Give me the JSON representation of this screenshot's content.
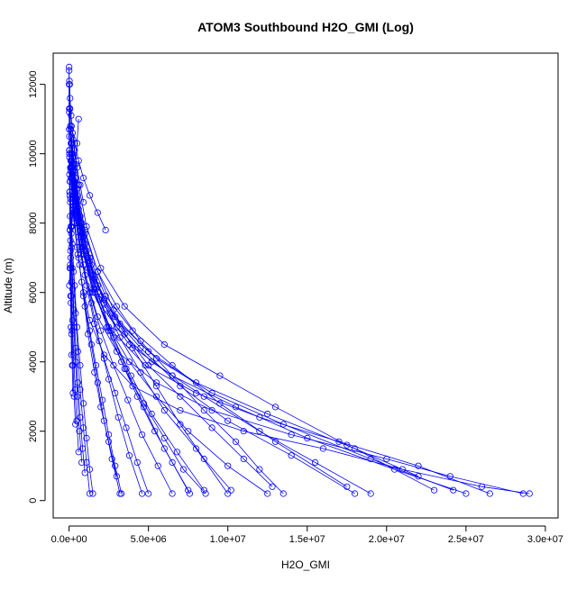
{
  "chart_data": {
    "type": "scatter",
    "title": "ATOM3 Southbound H2O_GMI (Log)",
    "xlabel": "H2O_GMI",
    "ylabel": "Altitude (m)",
    "xlim": [
      -1000000,
      30800000
    ],
    "ylim": [
      -500,
      12900
    ],
    "xticks": [
      0,
      5000000,
      10000000,
      15000000,
      20000000,
      25000000,
      30000000
    ],
    "xtick_labels": [
      "0.0e+00",
      "5.0e+06",
      "1.0e+07",
      "1.5e+07",
      "2.0e+07",
      "2.5e+07",
      "3.0e+07"
    ],
    "yticks": [
      0,
      2000,
      4000,
      6000,
      8000,
      10000,
      12000
    ],
    "ytick_labels": [
      "0",
      "2000",
      "4000",
      "6000",
      "8000",
      "10000",
      "12000"
    ],
    "marker": "open-circle",
    "line_style": "connected",
    "series_color": "#0000ff",
    "grid": false,
    "series": [
      {
        "x": [
          29000000,
          26000000,
          21000000,
          16000000,
          11000000,
          7000000,
          4000000,
          2200000,
          1300000,
          800000,
          500000,
          300000,
          150000,
          80000,
          40000
        ],
        "y": [
          200,
          400,
          900,
          1500,
          2000,
          2600,
          3300,
          4200,
          5200,
          6300,
          7300,
          8400,
          9600,
          10800,
          12000
        ]
      },
      {
        "x": [
          28600000,
          24000000,
          20000000,
          14000000,
          9000000,
          5500000,
          3000000,
          1800000,
          1000000,
          600000,
          300000,
          150000,
          60000
        ],
        "y": [
          200,
          700,
          1200,
          1900,
          2600,
          3400,
          4300,
          5300,
          6500,
          7600,
          8800,
          10000,
          11300
        ]
      },
      {
        "x": [
          26500000,
          22000000,
          17000000,
          12000000,
          8000000,
          4800000,
          2700000,
          1500000,
          900000,
          500000,
          250000,
          100000
        ],
        "y": [
          200,
          1000,
          1700,
          2400,
          3100,
          3900,
          4900,
          6000,
          7100,
          8200,
          9400,
          10700
        ]
      },
      {
        "x": [
          25000000,
          20500000,
          15000000,
          10500000,
          6500000,
          3800000,
          2200000,
          1200000,
          700000,
          350000,
          150000
        ],
        "y": [
          200,
          900,
          1800,
          2700,
          3600,
          4500,
          5500,
          6700,
          7900,
          9200,
          10500
        ]
      },
      {
        "x": [
          24200000,
          19000000,
          13500000,
          9000000,
          5500000,
          3200000,
          1800000,
          1000000,
          500000,
          200000
        ],
        "y": [
          300,
          1200,
          2200,
          3100,
          4100,
          5100,
          6200,
          7400,
          8700,
          10000
        ]
      },
      {
        "x": [
          23000000,
          18000000,
          12500000,
          8000000,
          5000000,
          2900000,
          1600000,
          900000,
          400000,
          150000
        ],
        "y": [
          300,
          1500,
          2500,
          3400,
          4300,
          5300,
          6400,
          7600,
          8900,
          10300
        ]
      },
      {
        "x": [
          22000000,
          17500000,
          13000000,
          9500000,
          6000000,
          3500000,
          2000000,
          1100000,
          600000,
          250000
        ],
        "y": [
          700,
          1600,
          2700,
          3600,
          4500,
          5600,
          6700,
          7900,
          9100,
          10400
        ]
      },
      {
        "x": [
          19000000,
          15500000,
          12000000,
          8500000,
          5200000,
          3000000,
          1700000,
          900000,
          450000,
          200000
        ],
        "y": [
          200,
          1100,
          2000,
          3000,
          4000,
          5000,
          6100,
          7300,
          8600,
          9900
        ]
      },
      {
        "x": [
          18000000,
          14000000,
          10000000,
          7000000,
          4500000,
          2600000,
          1500000,
          800000,
          350000,
          120000
        ],
        "y": [
          200,
          1300,
          2300,
          3300,
          4400,
          5400,
          6500,
          7700,
          9000,
          10300
        ]
      },
      {
        "x": [
          17500000,
          13000000,
          9500000,
          6500000,
          4000000,
          2300000,
          1300000,
          700000,
          300000
        ],
        "y": [
          400,
          1700,
          2800,
          3900,
          4900,
          5900,
          7000,
          8200,
          9500
        ]
      },
      {
        "x": [
          13500000,
          12000000,
          10500000,
          8500000,
          6500000,
          4500000,
          3000000,
          1800000,
          1000000,
          500000,
          200000
        ],
        "y": [
          200,
          900,
          1700,
          2600,
          3600,
          4600,
          5600,
          6600,
          7700,
          8800,
          10000
        ]
      },
      {
        "x": [
          12800000,
          11000000,
          9000000,
          7000000,
          5000000,
          3500000,
          2200000,
          1300000,
          700000,
          300000
        ],
        "y": [
          400,
          1200,
          2100,
          3000,
          3900,
          4800,
          5800,
          6900,
          8000,
          9200
        ]
      },
      {
        "x": [
          12500000,
          10000000,
          7500000,
          5500000,
          3800000,
          2500000,
          1500000,
          800000,
          400000,
          150000
        ],
        "y": [
          200,
          1000,
          2000,
          3000,
          4000,
          5000,
          6100,
          7300,
          8500,
          9800
        ]
      },
      {
        "x": [
          10200000,
          8500000,
          7000000,
          5500000,
          4000000,
          2800000,
          1800000,
          1000000,
          500000,
          200000
        ],
        "y": [
          300,
          1200,
          2200,
          3300,
          4400,
          5500,
          6600,
          7800,
          9000,
          10300
        ]
      },
      {
        "x": [
          10000000,
          8000000,
          6000000,
          4500000,
          3200000,
          2200000,
          1400000,
          800000,
          400000
        ],
        "y": [
          200,
          1500,
          2600,
          3700,
          4700,
          5700,
          6800,
          8000,
          9300
        ]
      },
      {
        "x": [
          8600000,
          7200000,
          6000000,
          4700000,
          3500000,
          2500000,
          1600000,
          900000,
          450000,
          180000
        ],
        "y": [
          200,
          900,
          1800,
          2800,
          3800,
          4900,
          6000,
          7200,
          8400,
          9700
        ]
      },
      {
        "x": [
          8500000,
          6800000,
          5200000,
          3900000,
          2800000,
          1900000,
          1200000,
          700000,
          300000
        ],
        "y": [
          300,
          1400,
          2500,
          3600,
          4700,
          5800,
          7000,
          8200,
          9500
        ]
      },
      {
        "x": [
          7600000,
          6500000,
          5400000,
          4300000,
          3300000,
          2400000,
          1600000,
          900000,
          450000,
          150000
        ],
        "y": [
          200,
          1100,
          2000,
          3000,
          4000,
          5000,
          6100,
          7300,
          8500,
          9800
        ]
      },
      {
        "x": [
          7500000,
          6000000,
          4700000,
          3600000,
          2600000,
          1800000,
          1100000,
          600000,
          250000
        ],
        "y": [
          300,
          1500,
          2700,
          3800,
          4900,
          6000,
          7200,
          8400,
          9700
        ]
      },
      {
        "x": [
          6500000,
          5600000,
          4600000,
          3700000,
          2800000,
          2000000,
          1300000,
          750000,
          350000,
          120000
        ],
        "y": [
          200,
          1000,
          1900,
          2900,
          3900,
          4900,
          6000,
          7100,
          8300,
          9600
        ]
      },
      {
        "x": [
          5000000,
          4300000,
          3600000,
          2900000,
          2200000,
          1600000,
          1100000,
          650000,
          300000,
          100000
        ],
        "y": [
          200,
          1100,
          2100,
          3100,
          4100,
          5100,
          6200,
          7300,
          8500,
          9800
        ]
      },
      {
        "x": [
          4600000,
          3800000,
          3100000,
          2500000,
          1900000,
          1400000,
          900000,
          500000,
          200000
        ],
        "y": [
          200,
          1300,
          2400,
          3500,
          4600,
          5700,
          6800,
          8000,
          9300
        ]
      },
      {
        "x": [
          3300000,
          2900000,
          2500000,
          2100000,
          1700000,
          1300000,
          900000,
          550000,
          250000,
          80000
        ],
        "y": [
          200,
          1000,
          1900,
          2900,
          3900,
          4900,
          6000,
          7100,
          8300,
          9600
        ]
      },
      {
        "x": [
          3200000,
          2700000,
          2200000,
          1800000,
          1400000,
          1000000,
          650000,
          350000,
          120000
        ],
        "y": [
          200,
          1200,
          2300,
          3400,
          4500,
          5600,
          6800,
          8000,
          9300
        ]
      },
      {
        "x": [
          3000000,
          2500000,
          2000000,
          1600000,
          1200000,
          900000,
          600000,
          300000,
          100000
        ],
        "y": [
          700,
          1700,
          2700,
          3700,
          4800,
          5900,
          7000,
          8200,
          9500
        ]
      },
      {
        "x": [
          1500000,
          1300000,
          1100000,
          900000,
          700000,
          500000,
          350000,
          200000,
          90000,
          30000
        ],
        "y": [
          200,
          900,
          1800,
          2800,
          3900,
          5000,
          6200,
          7400,
          8700,
          10000
        ]
      },
      {
        "x": [
          1300000,
          1100000,
          900000,
          700000,
          550000,
          400000,
          280000,
          160000,
          70000
        ],
        "y": [
          200,
          1100,
          2100,
          3200,
          4300,
          5400,
          6600,
          7900,
          9200
        ]
      },
      {
        "x": [
          1000000,
          850000,
          700000,
          550000,
          420000,
          300000,
          200000,
          110000,
          50000,
          20000
        ],
        "y": [
          800,
          1500,
          2400,
          3400,
          4400,
          5500,
          6700,
          7900,
          9200,
          10500
        ]
      },
      {
        "x": [
          800000,
          650000,
          520000,
          400000,
          300000,
          220000,
          140000,
          80000,
          30000
        ],
        "y": [
          1100,
          2000,
          3000,
          4000,
          5000,
          6100,
          7300,
          8600,
          9900
        ]
      },
      {
        "x": [
          600000,
          480000,
          380000,
          290000,
          210000,
          150000,
          90000,
          45000,
          15000
        ],
        "y": [
          1400,
          2300,
          3200,
          4200,
          5200,
          6300,
          7500,
          8800,
          10100
        ]
      },
      {
        "x": [
          400000,
          320000,
          250000,
          190000,
          140000,
          100000,
          60000,
          30000,
          10000,
          5000
        ],
        "y": [
          2200,
          3000,
          3900,
          4900,
          5900,
          7000,
          8200,
          9400,
          10700,
          12000
        ]
      },
      {
        "x": [
          250000,
          200000,
          160000,
          120000,
          90000,
          60000,
          40000,
          20000,
          8000,
          3000
        ],
        "y": [
          3100,
          3900,
          4800,
          5700,
          6700,
          7800,
          8900,
          10100,
          11300,
          12500
        ]
      },
      {
        "x": [
          150000,
          120000,
          95000,
          75000,
          55000,
          40000,
          25000,
          12000,
          5000
        ],
        "y": [
          4200,
          5000,
          5900,
          6800,
          7800,
          8900,
          10000,
          11200,
          12400
        ]
      },
      {
        "x": [
          600000,
          500000,
          420000,
          340000,
          270000,
          200000,
          140000,
          90000,
          50000,
          20000
        ],
        "y": [
          11000,
          10300,
          9700,
          9200,
          8700,
          8200,
          7700,
          7200,
          6700,
          6200
        ]
      },
      {
        "x": [
          900000,
          700000,
          500000,
          350000,
          220000,
          130000,
          60000,
          20000
        ],
        "y": [
          8600,
          9100,
          9600,
          10100,
          10600,
          11100,
          11600,
          12100
        ]
      },
      {
        "x": [
          2300000,
          1800000,
          1300000,
          900000,
          600000,
          350000,
          150000
        ],
        "y": [
          7800,
          8300,
          8800,
          9300,
          9800,
          10300,
          10800
        ]
      }
    ]
  }
}
